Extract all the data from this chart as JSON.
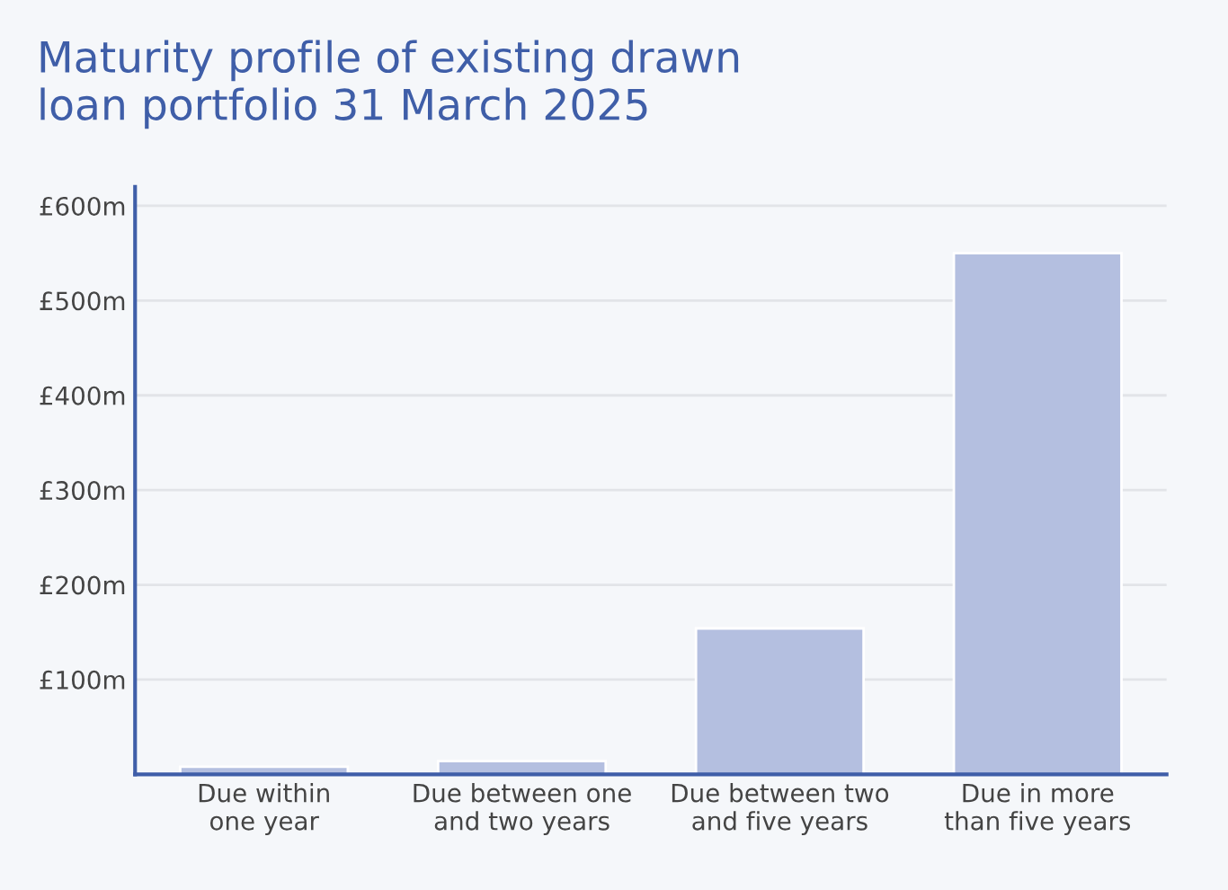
{
  "chart_data": {
    "type": "bar",
    "title": "Maturity profile of existing drawn\nloan portfolio 31 March 2025",
    "categories": [
      "Due within\none year",
      "Due between one\nand two years",
      "Due between two\nand five years",
      "Due in more\nthan five years"
    ],
    "values": [
      8,
      14,
      154,
      550
    ],
    "color": "#b4bfe0",
    "ylim": [
      0,
      620
    ],
    "yticks": [
      {
        "value": 100,
        "label": "£100m"
      },
      {
        "value": 200,
        "label": "£200m"
      },
      {
        "value": 300,
        "label": "£300m"
      },
      {
        "value": 400,
        "label": "£400m"
      },
      {
        "value": 500,
        "label": "£500m"
      },
      {
        "value": 600,
        "label": "£600m"
      }
    ],
    "grid": "y"
  }
}
